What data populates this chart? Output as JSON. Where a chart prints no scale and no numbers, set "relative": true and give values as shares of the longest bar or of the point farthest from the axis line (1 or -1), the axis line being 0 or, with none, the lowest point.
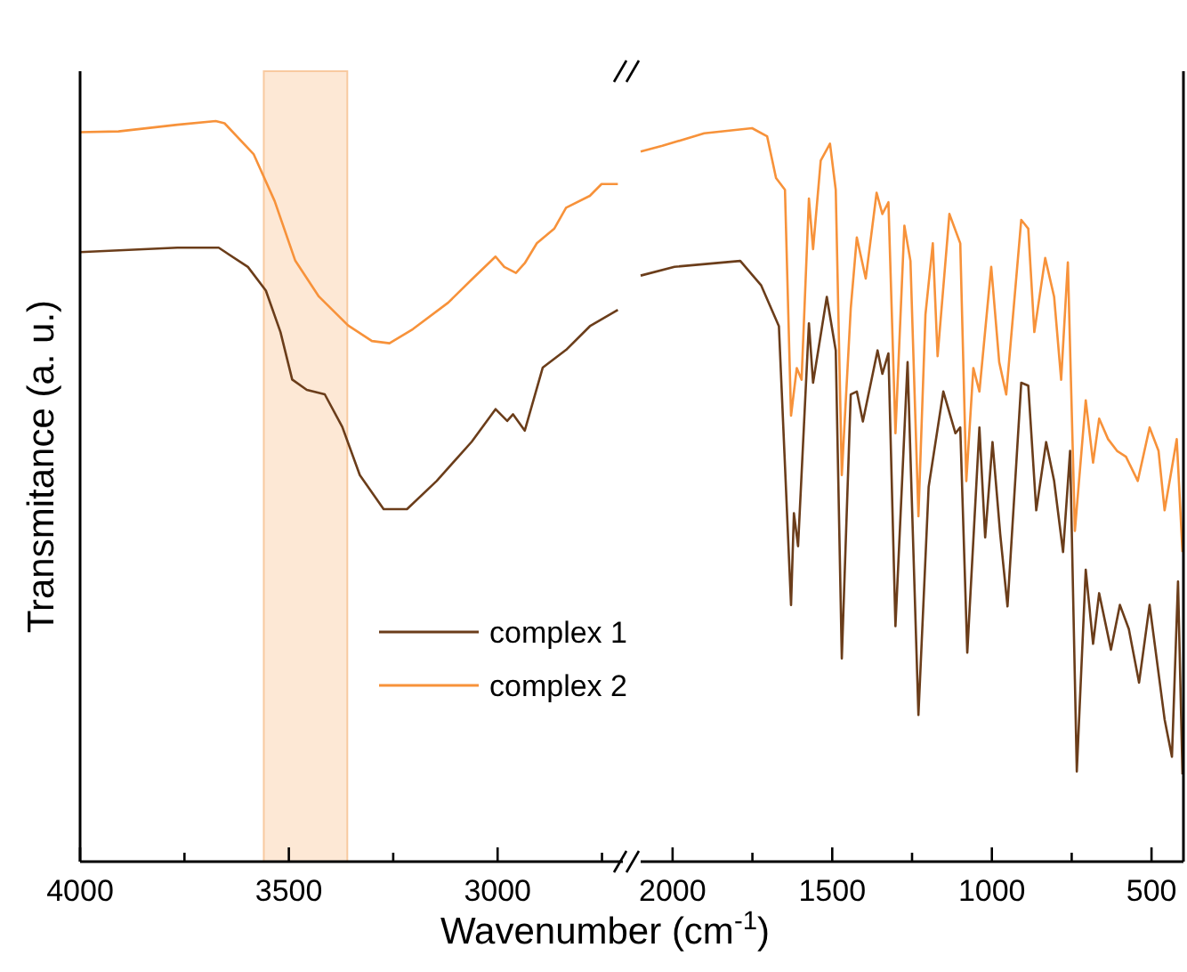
{
  "chart_data": [
    {
      "type": "line",
      "relative": true,
      "ylabel": "Transmitance (a. u.)",
      "xlabel": "Wavenumber (cm$^{-1}$)",
      "xlim": [
        4000,
        2700
      ],
      "xticks": [
        4000,
        {
          "value": 3750,
          "label": null
        },
        3500,
        {
          "value": 3250,
          "label": null
        },
        3000,
        {
          "value": 2750,
          "label": null
        }
      ],
      "tick_labels": "x",
      "legend": "bottom right",
      "grid": false,
      "bands": [
        {
          "axis": "x",
          "from": 3560,
          "to": 3360,
          "color": "#fde8d5"
        }
      ],
      "series": [
        {
          "name": "complex 1",
          "color": "#6b3d1a",
          "x": [
            4000,
            3767,
            3668,
            3598,
            3555,
            3520,
            3492,
            3457,
            3414,
            3372,
            3330,
            3273,
            3217,
            3146,
            3062,
            3005,
            2977,
            2963,
            2935,
            2892,
            2836,
            2779,
            2712
          ],
          "values": [
            0.823,
            0.829,
            0.829,
            0.803,
            0.771,
            0.715,
            0.651,
            0.637,
            0.631,
            0.587,
            0.522,
            0.476,
            0.476,
            0.514,
            0.567,
            0.611,
            0.595,
            0.604,
            0.582,
            0.667,
            0.691,
            0.723,
            0.745
          ]
        },
        {
          "name": "complex 2",
          "color": "#f7923a",
          "x": [
            4000,
            3908,
            3767,
            3675,
            3654,
            3584,
            3534,
            3485,
            3428,
            3358,
            3301,
            3259,
            3203,
            3118,
            3062,
            3005,
            2984,
            2956,
            2935,
            2906,
            2864,
            2836,
            2779,
            2751,
            2712
          ],
          "values": [
            0.985,
            0.986,
            0.995,
            1.0,
            0.997,
            0.955,
            0.892,
            0.812,
            0.763,
            0.724,
            0.703,
            0.7,
            0.719,
            0.755,
            0.786,
            0.817,
            0.803,
            0.795,
            0.808,
            0.835,
            0.855,
            0.883,
            0.899,
            0.915,
            0.915
          ]
        }
      ]
    },
    {
      "type": "line",
      "relative": true,
      "xlim": [
        2100,
        400
      ],
      "xticks": [
        2000,
        {
          "value": 1750,
          "label": null
        },
        1500,
        {
          "value": 1250,
          "label": null
        },
        1000,
        {
          "value": 750,
          "label": null
        },
        500
      ],
      "tick_labels": "x",
      "grid": false,
      "series": [
        {
          "color": "#6b3d1a",
          "x": [
            2100,
            1994,
            1788,
            1723,
            1667,
            1629,
            1620,
            1607,
            1573,
            1560,
            1517,
            1489,
            1470,
            1442,
            1423,
            1404,
            1358,
            1343,
            1324,
            1302,
            1264,
            1230,
            1198,
            1152,
            1114,
            1099,
            1077,
            1039,
            1021,
            998,
            974,
            951,
            908,
            886,
            861,
            830,
            805,
            777,
            755,
            734,
            706,
            683,
            664,
            627,
            599,
            571,
            539,
            506,
            459,
            436,
            417,
            403
          ],
          "values": [
            0.799,
            0.811,
            0.819,
            0.786,
            0.73,
            0.35,
            0.475,
            0.43,
            0.734,
            0.653,
            0.77,
            0.697,
            0.277,
            0.637,
            0.641,
            0.6,
            0.697,
            0.665,
            0.693,
            0.321,
            0.681,
            0.2,
            0.511,
            0.641,
            0.584,
            0.592,
            0.285,
            0.592,
            0.442,
            0.572,
            0.447,
            0.348,
            0.653,
            0.649,
            0.479,
            0.572,
            0.519,
            0.422,
            0.56,
            0.123,
            0.398,
            0.297,
            0.366,
            0.289,
            0.35,
            0.317,
            0.244,
            0.35,
            0.194,
            0.143,
            0.382,
            0.119
          ]
        },
        {
          "color": "#f7923a",
          "x": [
            2100,
            2032,
            1901,
            1751,
            1704,
            1676,
            1648,
            1629,
            1611,
            1596,
            1573,
            1560,
            1536,
            1507,
            1489,
            1470,
            1442,
            1423,
            1395,
            1361,
            1343,
            1324,
            1302,
            1274,
            1255,
            1230,
            1208,
            1185,
            1170,
            1133,
            1099,
            1080,
            1058,
            1039,
            1002,
            977,
            955,
            908,
            886,
            867,
            833,
            805,
            783,
            762,
            740,
            706,
            683,
            664,
            636,
            608,
            580,
            543,
            506,
            478,
            459,
            440,
            421,
            403
          ],
          "values": [
            0.968,
            0.976,
            0.993,
            1.0,
            0.989,
            0.932,
            0.916,
            0.608,
            0.673,
            0.657,
            0.904,
            0.835,
            0.956,
            0.979,
            0.916,
            0.527,
            0.754,
            0.851,
            0.795,
            0.912,
            0.883,
            0.899,
            0.584,
            0.867,
            0.819,
            0.471,
            0.746,
            0.843,
            0.689,
            0.883,
            0.843,
            0.519,
            0.673,
            0.641,
            0.811,
            0.681,
            0.637,
            0.875,
            0.863,
            0.722,
            0.823,
            0.77,
            0.657,
            0.817,
            0.451,
            0.629,
            0.544,
            0.604,
            0.576,
            0.56,
            0.552,
            0.519,
            0.592,
            0.56,
            0.479,
            0.527,
            0.576,
            0.422
          ]
        }
      ]
    }
  ]
}
